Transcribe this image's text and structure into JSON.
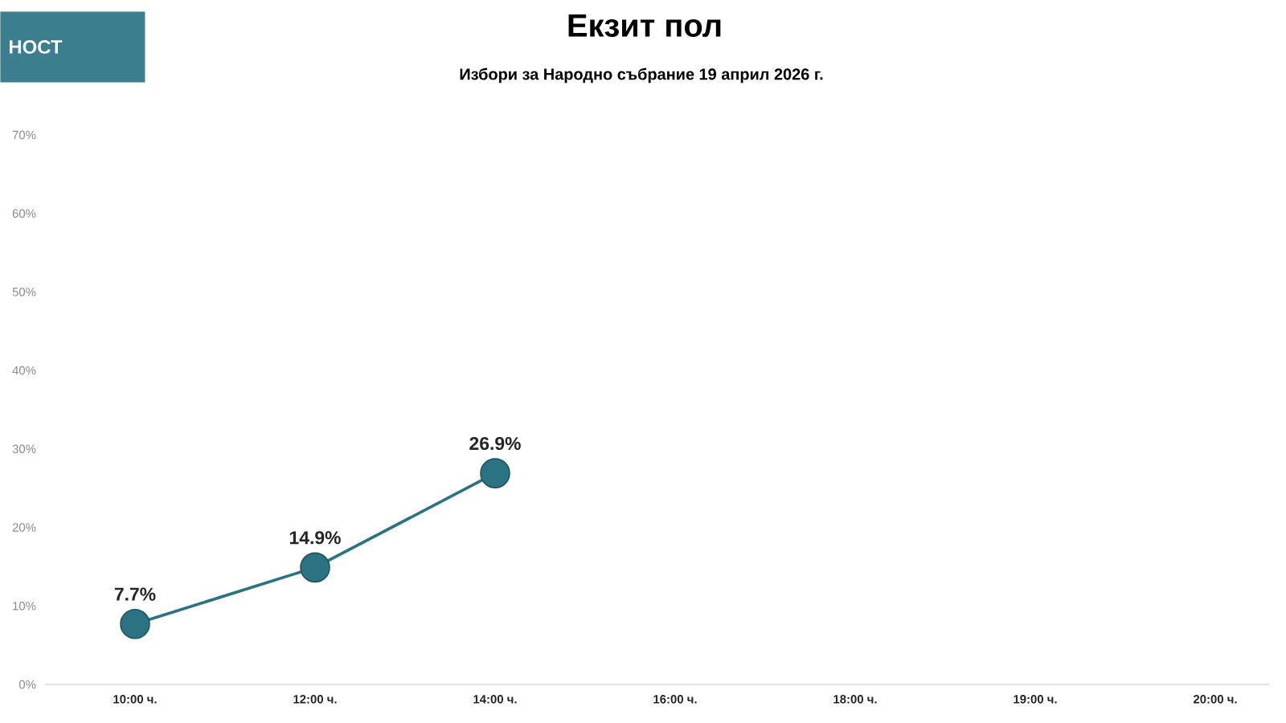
{
  "chart_data": {
    "type": "line",
    "title": "Екзит пол",
    "subtitle": "Избори за Народно събрание 19 април 2026 г.",
    "annotations": [
      "НОСТ"
    ],
    "categories": [
      "10:00 ч.",
      "12:00 ч.",
      "14:00 ч.",
      "16:00 ч.",
      "18:00 ч.",
      "19:00 ч.",
      "20:00 ч."
    ],
    "values": [
      7.7,
      14.9,
      26.9,
      null,
      null,
      null,
      null
    ],
    "value_labels": [
      "7.7%",
      "14.9%",
      "26.9%",
      null,
      null,
      null,
      null
    ],
    "color": "#2b7282",
    "marker": "circle",
    "line_style": "solid",
    "ylim": [
      0,
      70
    ],
    "yticks": [
      {
        "value": 0,
        "label": "0%"
      },
      {
        "value": 10,
        "label": "10%"
      },
      {
        "value": 20,
        "label": "20%"
      },
      {
        "value": 30,
        "label": "30%"
      },
      {
        "value": 40,
        "label": "40%"
      },
      {
        "value": 50,
        "label": "50%"
      },
      {
        "value": 60,
        "label": "60%"
      },
      {
        "value": 70,
        "label": "70%"
      }
    ]
  }
}
